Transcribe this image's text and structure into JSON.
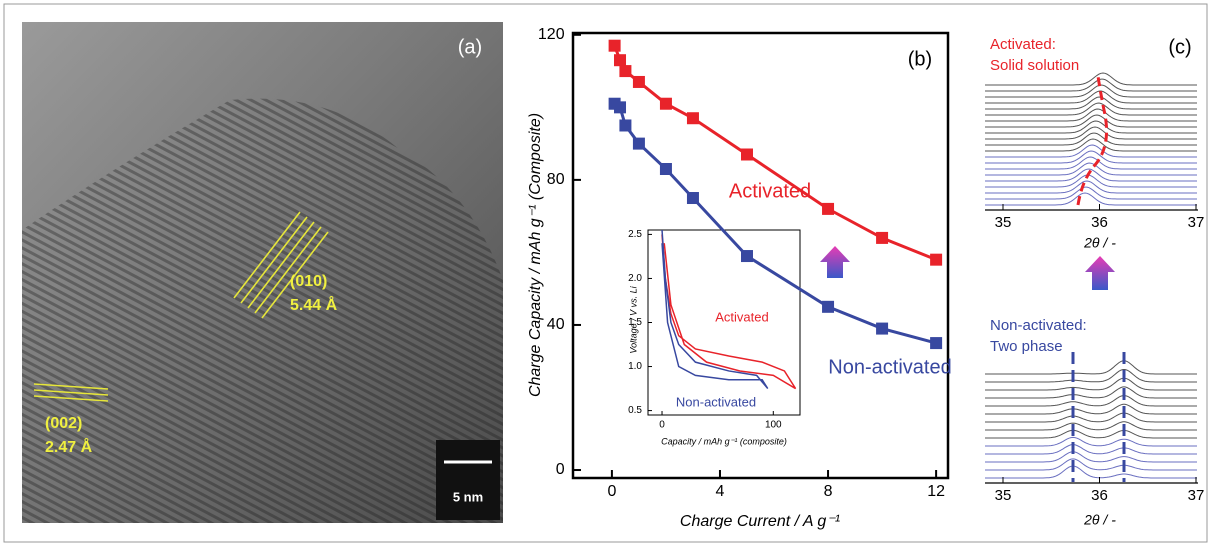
{
  "panel_a": {
    "label": "(a)",
    "annotations": [
      {
        "plane": "(010)",
        "spacing": "5.44 Å"
      },
      {
        "plane": "(002)",
        "spacing": "2.47 Å"
      }
    ],
    "scale_bar": "5 nm"
  },
  "chart_data": [
    {
      "type": "line",
      "panel_label": "(b)",
      "x_label": "Charge Current / A g⁻¹",
      "y_label": "Charge  Capacity  / mAh g⁻¹ (Composite)",
      "x": [
        0.1,
        0.3,
        0.5,
        1,
        2,
        3,
        5,
        8,
        10,
        12
      ],
      "series": [
        {
          "name": "Activated",
          "color": "#e8232a",
          "values": [
            117,
            113,
            110,
            107,
            101,
            97,
            87,
            72,
            64,
            58
          ]
        },
        {
          "name": "Non-activated",
          "color": "#3848a0",
          "values": [
            101,
            100,
            95,
            90,
            83,
            75,
            59,
            45,
            39,
            35
          ]
        }
      ],
      "xlim": [
        -1.44,
        12.44
      ],
      "ylim": [
        -2.2,
        120.5
      ],
      "xticks": [
        0,
        4,
        8,
        12
      ],
      "yticks": [
        0,
        40,
        80,
        120
      ]
    },
    {
      "type": "line",
      "x_label": "Capacity / mAh g⁻¹ (composite)",
      "y_label": "Voltage / V vs. Li",
      "series": [
        {
          "name": "Activated",
          "color": "#e8232a",
          "x": [
            0,
            3,
            8,
            15,
            30,
            60,
            90,
            110,
            120,
            100,
            70,
            40,
            20,
            8,
            2
          ],
          "values": [
            2.5,
            2.0,
            1.6,
            1.35,
            1.2,
            1.12,
            1.05,
            0.95,
            0.75,
            0.9,
            0.95,
            1.05,
            1.25,
            1.7,
            2.4
          ]
        },
        {
          "name": "Non-activated",
          "color": "#3848a0",
          "x": [
            0,
            3,
            8,
            15,
            30,
            60,
            85,
            95,
            90,
            60,
            30,
            15,
            5,
            0
          ],
          "values": [
            2.55,
            2.0,
            1.5,
            1.25,
            1.05,
            0.95,
            0.9,
            0.75,
            0.85,
            0.85,
            0.9,
            1.0,
            1.5,
            2.4
          ]
        }
      ],
      "xlim": [
        -12.6,
        124
      ],
      "ylim": [
        0.45,
        2.55
      ],
      "xticks": [
        0,
        100
      ],
      "yticks": [
        0.5,
        {
          "value": 1,
          "label": "1.0"
        },
        1.5,
        {
          "value": 2,
          "label": "2.0"
        },
        2.5
      ]
    }
  ],
  "panel_c": {
    "label": "(c)",
    "top": {
      "title": [
        "Activated:",
        "Solid solution"
      ],
      "xticks": [
        35,
        36,
        37
      ],
      "x_label": "2θ / -"
    },
    "bottom": {
      "title": [
        "Non-activated:",
        "Two phase"
      ],
      "xticks": [
        35,
        36,
        37
      ],
      "x_label": "2θ / -"
    }
  }
}
